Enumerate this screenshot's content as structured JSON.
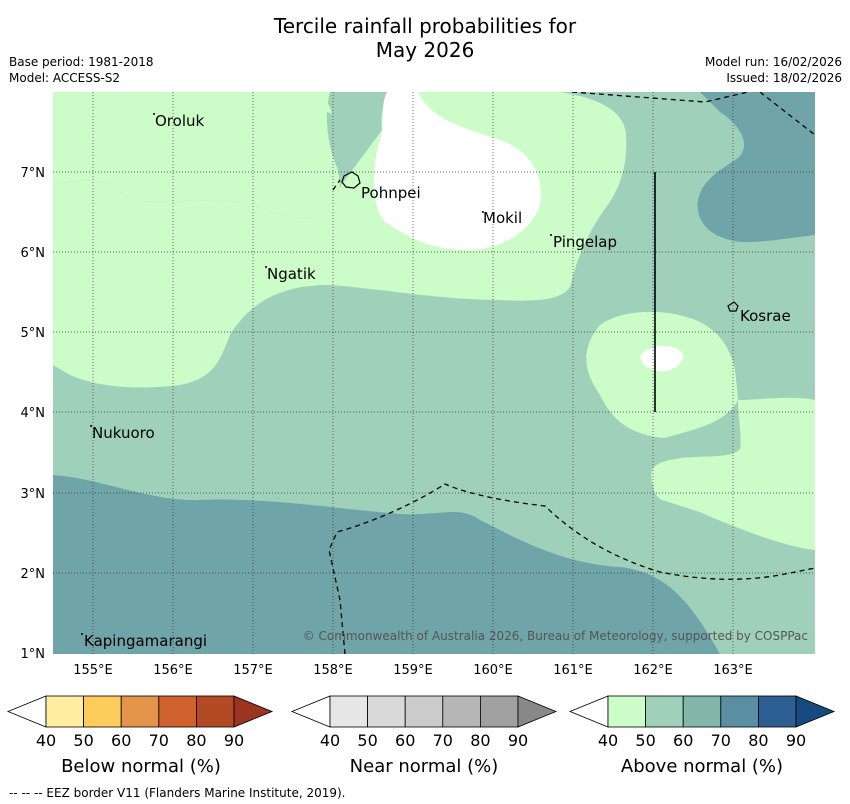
{
  "title_line1": "Tercile rainfall probabilities for",
  "title_line2": "May 2026",
  "meta": {
    "base_period": "Base period: 1981-2018",
    "model": "Model: ACCESS-S2",
    "model_run": "Model run: 16/02/2026",
    "issued": "Issued: 18/02/2026"
  },
  "places": {
    "oroluk": "Oroluk",
    "pohnpei": "Pohnpei",
    "mokil": "Mokil",
    "pingelap": "Pingelap",
    "ngatik": "Ngatik",
    "kosrae": "Kosrae",
    "nukuoro": "Nukuoro",
    "kapingamarangi": "Kapingamarangi"
  },
  "lat_labels": [
    "7°N",
    "6°N",
    "5°N",
    "4°N",
    "3°N",
    "2°N",
    "1°N"
  ],
  "lon_labels": [
    "155°E",
    "156°E",
    "157°E",
    "158°E",
    "159°E",
    "160°E",
    "161°E",
    "162°E",
    "163°E"
  ],
  "copyright": "© Commonwealth of Australia 2026, Bureau of Meteorology, supported by COSPPac",
  "colorbars": {
    "ticks": [
      "40",
      "50",
      "60",
      "70",
      "80",
      "90"
    ],
    "below": {
      "label": "Below normal (%)",
      "colors": [
        "#ffffff",
        "#ffeda0",
        "#fecc5c",
        "#e3944a",
        "#d0622f",
        "#b34a26",
        "#9b3420"
      ]
    },
    "near": {
      "label": "Near normal (%)",
      "colors": [
        "#ffffff",
        "#e6e6e6",
        "#d9d9d9",
        "#cccccc",
        "#b6b6b6",
        "#a0a0a0",
        "#888888"
      ]
    },
    "above": {
      "label": "Above normal (%)",
      "colors": [
        "#ffffff",
        "#ccfcc8",
        "#9fd1ba",
        "#82b7a8",
        "#5a8fa3",
        "#2e5f92",
        "#174a80"
      ]
    }
  },
  "footnote": "--  --  -- EEZ border V11 (Flanders Marine Institute, 2019)."
}
